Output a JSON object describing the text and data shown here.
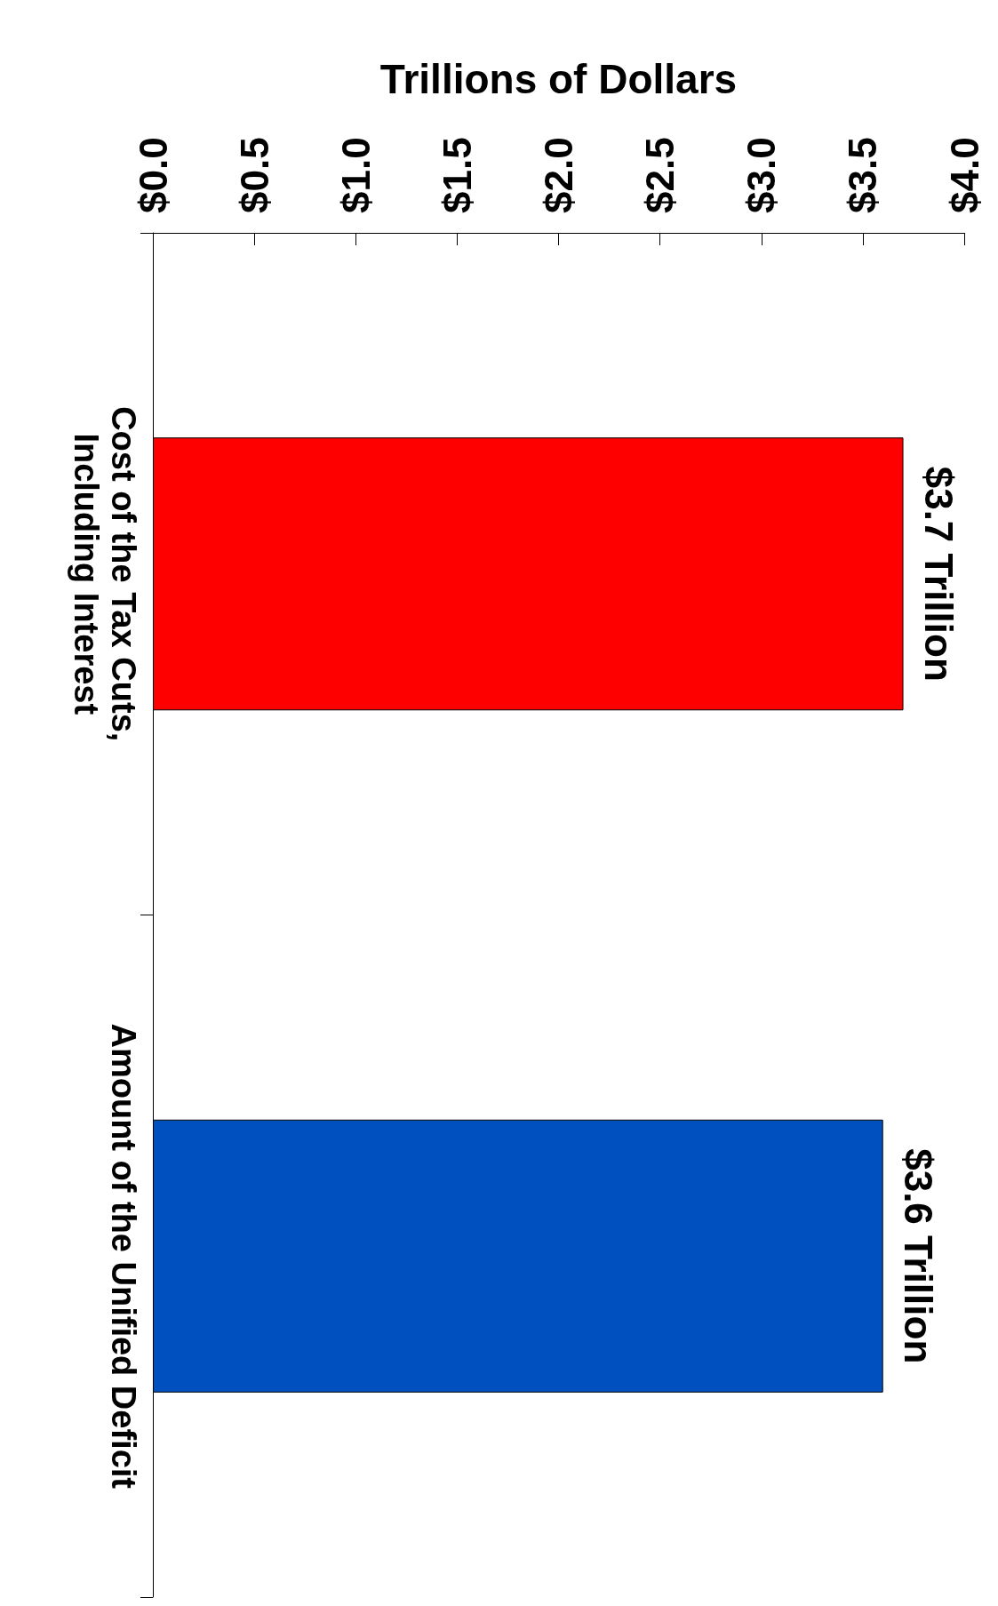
{
  "chart_data": {
    "type": "bar",
    "orientation": "horizontal",
    "xlabel": "Trillions of Dollars",
    "categories": [
      "Cost of the Tax Cuts,\nIncluding Interest",
      "Amount of the Unified Deficit"
    ],
    "values": [
      3.7,
      3.6
    ],
    "colors": [
      "#ff0000",
      "#0050c0"
    ],
    "value_labels": [
      "$3.7 Trillion",
      "$3.6 Trillion"
    ],
    "xlim": [
      0,
      4
    ],
    "xticks": [
      {
        "value": 0,
        "label": "$0.0"
      },
      {
        "value": 0.5,
        "label": "$0.5"
      },
      {
        "value": 1,
        "label": "$1.0"
      },
      {
        "value": 1.5,
        "label": "$1.5"
      },
      {
        "value": 2,
        "label": "$2.0"
      },
      {
        "value": 2.5,
        "label": "$2.5"
      },
      {
        "value": 3,
        "label": "$3.0"
      },
      {
        "value": 3.5,
        "label": "$3.5"
      },
      {
        "value": 4,
        "label": "$4.0"
      }
    ]
  }
}
